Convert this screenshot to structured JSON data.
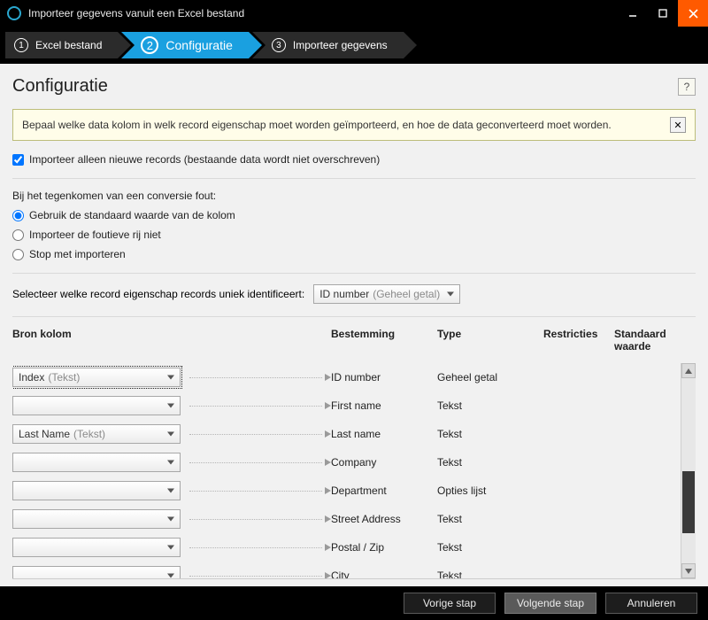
{
  "window": {
    "title": "Importeer gegevens vanuit een Excel bestand"
  },
  "steps": {
    "s1": {
      "num": "1",
      "label": "Excel bestand"
    },
    "s2": {
      "num": "2",
      "label": "Configuratie"
    },
    "s3": {
      "num": "3",
      "label": "Importeer gegevens"
    }
  },
  "page": {
    "heading": "Configuratie",
    "help": "?",
    "banner": "Bepaal welke data kolom in welk record eigenschap moet worden geïmporteerd, en hoe de data geconverteerd moet worden.",
    "banner_close": "✕",
    "only_new_label": "Importeer alleen nieuwe records (bestaande data wordt niet overschreven)",
    "on_error_label": "Bij het tegenkomen van een conversie fout:",
    "err_opt1": "Gebruik de standaard waarde van de kolom",
    "err_opt2": "Importeer de foutieve rij niet",
    "err_opt3": "Stop met importeren",
    "unique_label": "Selecteer welke record eigenschap records uniek identificeert:",
    "unique_value": "ID number",
    "unique_hint": "(Geheel getal)"
  },
  "columns": {
    "src": "Bron kolom",
    "dest": "Bestemming",
    "type": "Type",
    "restr": "Restricties",
    "def": "Standaard waarde"
  },
  "rows": [
    {
      "src": "Index",
      "src_hint": "(Tekst)",
      "dest": "ID number",
      "type": "Geheel getal"
    },
    {
      "src": "",
      "src_hint": "",
      "dest": "First name",
      "type": "Tekst"
    },
    {
      "src": "Last Name",
      "src_hint": "(Tekst)",
      "dest": "Last name",
      "type": "Tekst"
    },
    {
      "src": "",
      "src_hint": "",
      "dest": "Company",
      "type": "Tekst"
    },
    {
      "src": "",
      "src_hint": "",
      "dest": "Department",
      "type": "Opties lijst"
    },
    {
      "src": "",
      "src_hint": "",
      "dest": "Street Address",
      "type": "Tekst"
    },
    {
      "src": "",
      "src_hint": "",
      "dest": "Postal / Zip",
      "type": "Tekst"
    },
    {
      "src": "",
      "src_hint": "",
      "dest": "City",
      "type": "Tekst"
    }
  ],
  "footer": {
    "prev": "Vorige stap",
    "next": "Volgende stap",
    "cancel": "Annuleren"
  }
}
